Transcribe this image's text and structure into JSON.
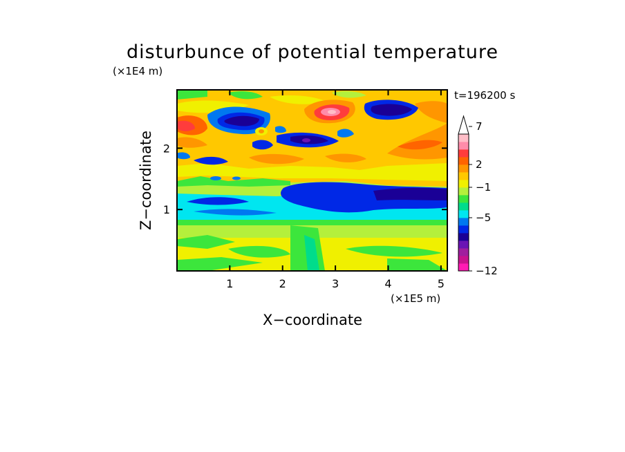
{
  "chart_data": {
    "type": "heatmap",
    "title": "disturbunce of potential temperature",
    "xlabel": "X−coordinate",
    "ylabel": "Z−coordinate",
    "x_unit_label": "(×1E5 m)",
    "y_unit_label": "(×1E4 m)",
    "time_label": "t=196200 s",
    "xlim": [
      0,
      5.12
    ],
    "ylim": [
      0,
      2.95
    ],
    "x_ticks": [
      1,
      2,
      3,
      4,
      5
    ],
    "x_tick_labels": [
      "1",
      "2",
      "3",
      "4",
      "5"
    ],
    "y_ticks": [
      1,
      2
    ],
    "y_tick_labels": [
      "1",
      "2"
    ],
    "colorbar": {
      "levels": [
        -12,
        -11,
        -10,
        -9,
        -8,
        -7,
        -6,
        -5,
        -4,
        -3,
        -2,
        -1,
        0,
        1,
        2,
        3,
        4,
        5,
        6,
        7,
        8,
        9,
        10
      ],
      "colors": [
        "#ff1ab4",
        "#c8128e",
        "#a01e9e",
        "#6a14b4",
        "#1a0096",
        "#0028e6",
        "#0078f0",
        "#00e6f0",
        "#00dc8c",
        "#3ce63c",
        "#b4f03c",
        "#f0f000",
        "#ffc800",
        "#ff9600",
        "#ff6400",
        "#ff3c3c",
        "#ff8caa",
        "#ffbec8"
      ],
      "tick_values": [
        -12,
        -5,
        -1,
        2,
        7
      ],
      "tick_labels": [
        "−12",
        "−5",
        "−1",
        "2",
        "7"
      ],
      "extend": "max"
    },
    "grid": false
  }
}
